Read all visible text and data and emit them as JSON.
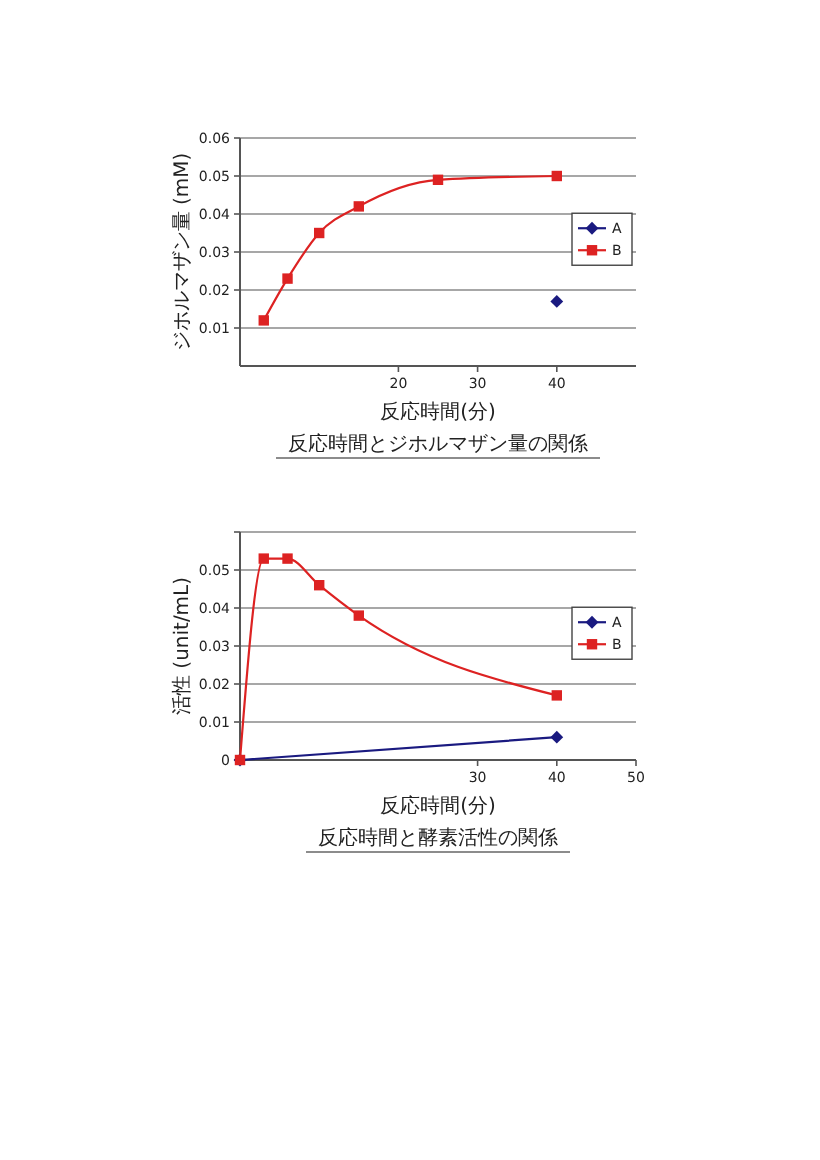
{
  "chart_data": [
    {
      "type": "line",
      "title": "反応時間とジホルマザン量の関係",
      "xlabel": "反応時間(分)",
      "ylabel": "ジホルマザン量 (mM)",
      "series": [
        {
          "name": "A",
          "color": "#1a1a80",
          "marker": "diamond",
          "x": [
            40
          ],
          "values": [
            0.017
          ]
        },
        {
          "name": "B",
          "color": "#dd2222",
          "marker": "square",
          "x": [
            3,
            6,
            10,
            15,
            25,
            40
          ],
          "values": [
            0.012,
            0.023,
            0.035,
            0.042,
            0.049,
            0.05
          ]
        }
      ],
      "xlim": [
        0,
        50
      ],
      "xticks": [
        20,
        30,
        40
      ],
      "ylim": [
        0,
        0.06
      ],
      "yticks": [
        0.01,
        0.02,
        0.03,
        0.04,
        0.05,
        0.06
      ],
      "grid": "y",
      "legend": "right"
    },
    {
      "type": "line",
      "title": "反応時間と酵素活性の関係",
      "xlabel": "反応時間(分)",
      "ylabel": "活性 (unit/mL)",
      "series": [
        {
          "name": "A",
          "color": "#1a1a80",
          "marker": "diamond",
          "x": [
            0,
            40
          ],
          "values": [
            0,
            0.006
          ]
        },
        {
          "name": "B",
          "color": "#dd2222",
          "marker": "square",
          "x": [
            0,
            3,
            6,
            10,
            15,
            40
          ],
          "values": [
            0,
            0.053,
            0.053,
            0.046,
            0.038,
            0.017
          ]
        }
      ],
      "xlim": [
        0,
        50
      ],
      "xticks": [
        30,
        40,
        50
      ],
      "ylim": [
        0,
        0.06
      ],
      "yticks": [
        0,
        0.01,
        0.02,
        0.03,
        0.04,
        0.05,
        {
          "value": 0.06,
          "label": null
        }
      ],
      "grid": "y",
      "legend": "right"
    }
  ]
}
